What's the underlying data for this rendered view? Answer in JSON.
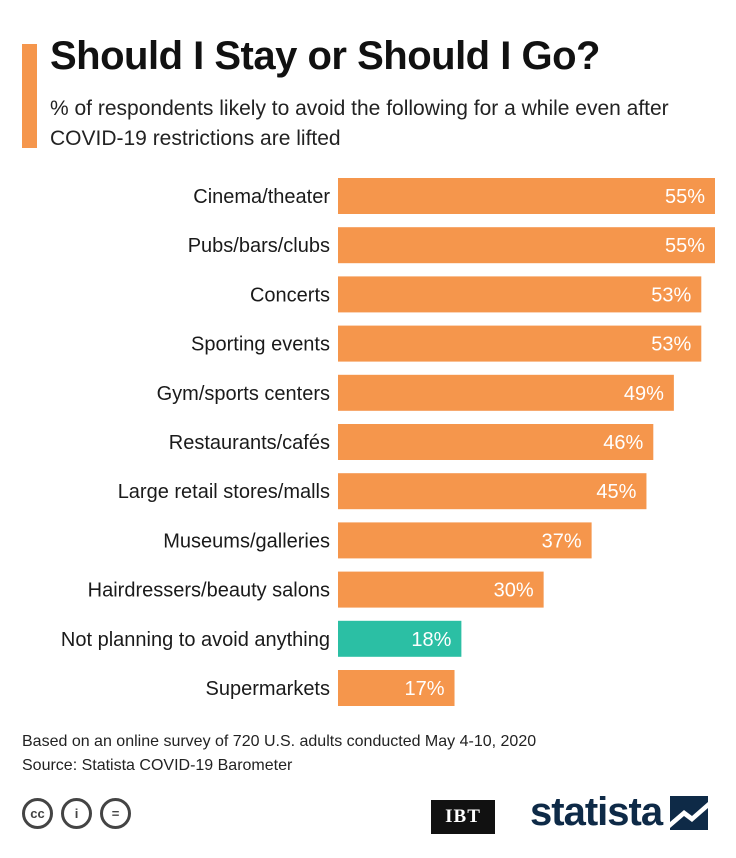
{
  "header": {
    "title": "Should I Stay or Should I Go?",
    "subtitle": "% of respondents likely to avoid the following for a while even after COVID-19 restrictions are lifted"
  },
  "chart_data": {
    "type": "bar",
    "orientation": "horizontal",
    "title": "Should I Stay or Should I Go?",
    "xlabel": "",
    "ylabel": "",
    "unit": "%",
    "xlim": [
      0,
      55
    ],
    "categories": [
      "Cinema/theater",
      "Pubs/bars/clubs",
      "Concerts",
      "Sporting events",
      "Gym/sports centers",
      "Restaurants/cafés",
      "Large retail stores/malls",
      "Museums/galleries",
      "Hairdressers/beauty salons",
      "Not planning to avoid anything",
      "Supermarkets"
    ],
    "values": [
      55,
      55,
      53,
      53,
      49,
      46,
      45,
      37,
      30,
      18,
      17
    ],
    "labels": [
      "55%",
      "55%",
      "53%",
      "53%",
      "49%",
      "46%",
      "45%",
      "37%",
      "30%",
      "18%",
      "17%"
    ],
    "colors": [
      "#f5964c",
      "#f5964c",
      "#f5964c",
      "#f5964c",
      "#f5964c",
      "#f5964c",
      "#f5964c",
      "#f5964c",
      "#f5964c",
      "#2bbfa4",
      "#f5964c"
    ]
  },
  "footer": {
    "note": "Based on an online survey of 720 U.S. adults conducted May 4-10, 2020",
    "source": "Source: Statista COVID-19 Barometer",
    "cc_icons": [
      "cc",
      "i",
      "="
    ],
    "ibt": "IBT",
    "statista": "statista"
  }
}
